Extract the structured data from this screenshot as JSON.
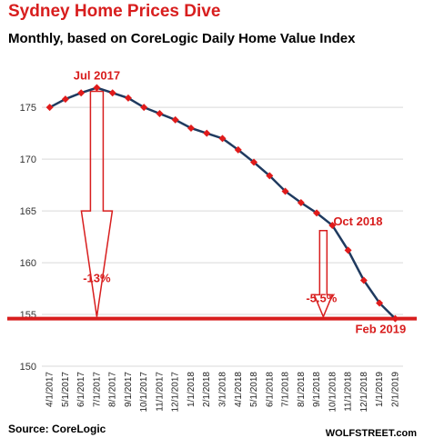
{
  "title": "Sydney Home Prices Dive",
  "subtitle": "Monthly, based on CoreLogic Daily Home Value Index",
  "source": "Source: CoreLogic",
  "brand": "WOLFSTREET.com",
  "colors": {
    "title": "#d81e1e",
    "line": "#1f3a5f",
    "marker": "#e01b1b",
    "annotation": "#d81e1e",
    "grid": "#d9d9d9"
  },
  "chart_data": {
    "type": "line",
    "x": [
      "4/1/2017",
      "5/1/2017",
      "6/1/2017",
      "7/1/2017",
      "8/1/2017",
      "9/1/2017",
      "10/1/2017",
      "11/1/2017",
      "12/1/2017",
      "1/1/2018",
      "2/1/2018",
      "3/1/2018",
      "4/1/2018",
      "5/1/2018",
      "6/1/2018",
      "7/1/2018",
      "8/1/2018",
      "9/1/2018",
      "10/1/2018",
      "11/1/2018",
      "12/1/2018",
      "1/1/2019",
      "2/1/2019"
    ],
    "series": [
      {
        "values": [
          175.0,
          175.8,
          176.4,
          176.9,
          176.4,
          175.9,
          175.0,
          174.4,
          173.8,
          173.0,
          172.5,
          172.0,
          170.9,
          169.7,
          168.4,
          166.9,
          165.8,
          164.8,
          163.6,
          161.2,
          158.3,
          156.1,
          154.6
        ]
      }
    ],
    "ylim": [
      150,
      178
    ],
    "yticks": [
      150,
      155,
      160,
      165,
      170,
      175
    ],
    "grid": "horizontal",
    "xlabel": "",
    "ylabel": "",
    "reference_line": 154.6,
    "annotations": {
      "peak_label": "Jul 2017",
      "peak_change": "-13%",
      "oct_label": "Oct 2018",
      "oct_change": "-5.5%",
      "end_label": "Feb 2019"
    }
  }
}
